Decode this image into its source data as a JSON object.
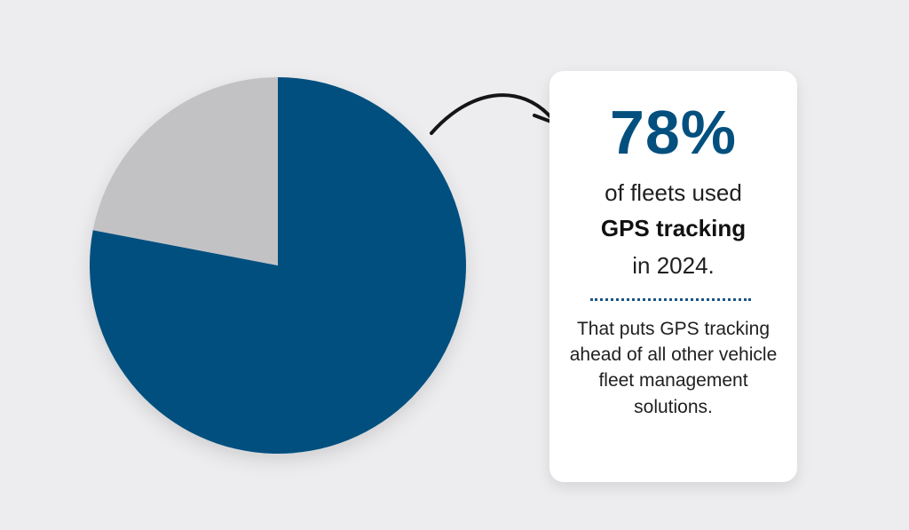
{
  "colors": {
    "accent_blue": "#03507f",
    "other_gray": "#c2c2c5",
    "background": "#ededef",
    "text_dark": "#1f1f1f"
  },
  "chart_data": {
    "type": "pie",
    "values": [
      78,
      22
    ],
    "colors": [
      "#03507f",
      "#c2c2c5"
    ]
  },
  "callout": {
    "stat": "78%",
    "line1": "of fleets used",
    "line2": "GPS tracking",
    "line3": "in 2024.",
    "description": "That puts GPS tracking ahead of all other vehicle fleet management solutions."
  },
  "icons": {
    "arrow": "curved-arrow-icon"
  }
}
